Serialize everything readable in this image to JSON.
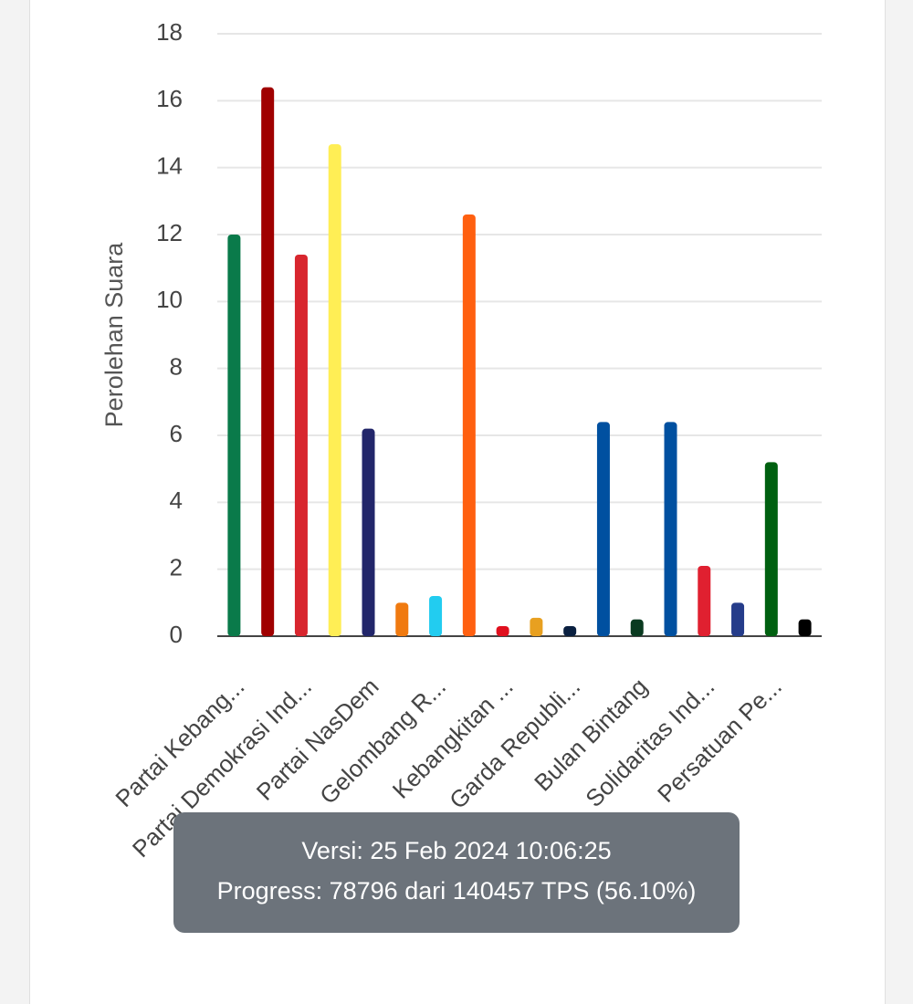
{
  "chart_data": {
    "type": "bar",
    "ylabel": "Perolehan Suara",
    "categories": [
      "Partai Kebang...",
      null,
      "Partai Demokrasi Ind...",
      null,
      "Partai NasDem",
      null,
      "Gelombang R...",
      null,
      "Kebangkitan ...",
      null,
      "Garda Republi...",
      null,
      "Bulan Bintang",
      null,
      "Solidaritas Ind...",
      null,
      "Persatuan Pe...",
      null
    ],
    "values": [
      12.0,
      16.4,
      11.4,
      14.7,
      6.2,
      1.0,
      1.2,
      12.6,
      0.3,
      0.55,
      0.3,
      6.4,
      0.5,
      6.4,
      2.1,
      1.0,
      5.2,
      0.5
    ],
    "colors": [
      "#0a7a4a",
      "#a00000",
      "#d8262e",
      "#ffee55",
      "#22266a",
      "#f07a10",
      "#22ccf0",
      "#ff6010",
      "#e0101e",
      "#e8a020",
      "#0a2040",
      "#0050a0",
      "#0a3a20",
      "#0050a0",
      "#e02030",
      "#253c8a",
      "#006010",
      "#000000"
    ],
    "ylim": [
      0,
      18
    ],
    "yticks": [
      0,
      2,
      4,
      6,
      8,
      10,
      12,
      14,
      16,
      18
    ],
    "grid": true
  },
  "toast": {
    "line1": "Versi: 25 Feb 2024 10:06:25",
    "line2": "Progress: 78796 dari 140457 TPS (56.10%)"
  }
}
